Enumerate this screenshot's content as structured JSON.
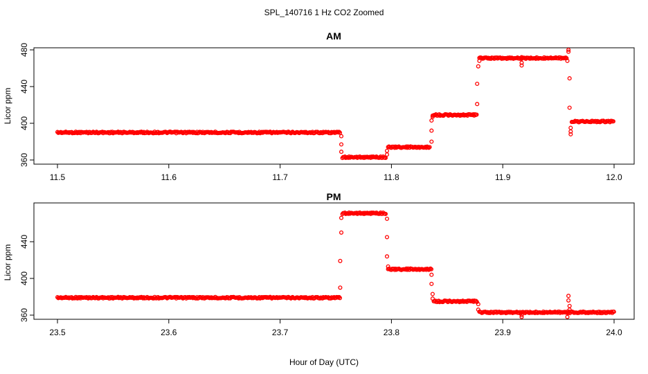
{
  "chart_data": {
    "type": "scatter",
    "title": "SPL_140716  1 Hz CO2 Zoomed",
    "xlabel": "Hour of Day (UTC)",
    "colors": {
      "points": "#ff0000",
      "axes": "#000000"
    },
    "panels": [
      {
        "title": "AM",
        "ylabel": "Licor ppm",
        "xlim": [
          11.5,
          12.0
        ],
        "ylim": [
          360,
          480
        ],
        "x_ticks": [
          11.5,
          11.6,
          11.7,
          11.8,
          11.9,
          12.0
        ],
        "x_tick_labels": [
          "11.5",
          "11.6",
          "11.7",
          "11.8",
          "11.9",
          "12.0"
        ],
        "y_ticks": [
          360,
          400,
          440,
          480
        ],
        "y_tick_labels": [
          "360",
          "400",
          "440",
          "480"
        ],
        "segments": [
          {
            "x_start": 11.5,
            "x_end": 11.754,
            "y": 390
          },
          {
            "x_start": 11.756,
            "x_end": 11.795,
            "y": 363
          },
          {
            "x_start": 11.797,
            "x_end": 11.835,
            "y": 374
          },
          {
            "x_start": 11.837,
            "x_end": 11.877,
            "y": 409
          },
          {
            "x_start": 11.879,
            "x_end": 11.958,
            "y": 471
          },
          {
            "x_start": 11.962,
            "x_end": 12.0,
            "y": 402
          }
        ],
        "outliers": [
          {
            "x": 11.755,
            "y": 386
          },
          {
            "x": 11.755,
            "y": 377
          },
          {
            "x": 11.755,
            "y": 369
          },
          {
            "x": 11.796,
            "y": 366
          },
          {
            "x": 11.796,
            "y": 370
          },
          {
            "x": 11.836,
            "y": 380
          },
          {
            "x": 11.836,
            "y": 392
          },
          {
            "x": 11.836,
            "y": 403
          },
          {
            "x": 11.837,
            "y": 407
          },
          {
            "x": 11.877,
            "y": 421
          },
          {
            "x": 11.877,
            "y": 443
          },
          {
            "x": 11.878,
            "y": 462
          },
          {
            "x": 11.879,
            "y": 468
          },
          {
            "x": 11.917,
            "y": 463
          },
          {
            "x": 11.917,
            "y": 466
          },
          {
            "x": 11.917,
            "y": 472
          },
          {
            "x": 11.958,
            "y": 468
          },
          {
            "x": 11.959,
            "y": 478
          },
          {
            "x": 11.959,
            "y": 480
          },
          {
            "x": 11.96,
            "y": 449
          },
          {
            "x": 11.96,
            "y": 417
          },
          {
            "x": 11.961,
            "y": 388
          },
          {
            "x": 11.961,
            "y": 391
          },
          {
            "x": 11.961,
            "y": 395
          }
        ]
      },
      {
        "title": "PM",
        "ylabel": "Licor ppm",
        "xlim": [
          23.5,
          24.0
        ],
        "ylim": [
          360,
          480
        ],
        "x_ticks": [
          23.5,
          23.6,
          23.7,
          23.8,
          23.9,
          24.0
        ],
        "x_tick_labels": [
          "23.5",
          "23.6",
          "23.7",
          "23.8",
          "23.9",
          "24.0"
        ],
        "y_ticks": [
          360,
          400,
          440
        ],
        "y_tick_labels": [
          "360",
          "400",
          "440"
        ],
        "segments": [
          {
            "x_start": 23.5,
            "x_end": 23.754,
            "y": 379
          },
          {
            "x_start": 23.756,
            "x_end": 23.795,
            "y": 471
          },
          {
            "x_start": 23.797,
            "x_end": 23.836,
            "y": 410
          },
          {
            "x_start": 23.838,
            "x_end": 23.877,
            "y": 375
          },
          {
            "x_start": 23.879,
            "x_end": 24.0,
            "y": 363
          }
        ],
        "outliers": [
          {
            "x": 23.754,
            "y": 390
          },
          {
            "x": 23.754,
            "y": 419
          },
          {
            "x": 23.755,
            "y": 450
          },
          {
            "x": 23.755,
            "y": 466
          },
          {
            "x": 23.796,
            "y": 465
          },
          {
            "x": 23.796,
            "y": 445
          },
          {
            "x": 23.796,
            "y": 424
          },
          {
            "x": 23.797,
            "y": 413
          },
          {
            "x": 23.836,
            "y": 404
          },
          {
            "x": 23.836,
            "y": 394
          },
          {
            "x": 23.837,
            "y": 383
          },
          {
            "x": 23.837,
            "y": 378
          },
          {
            "x": 23.878,
            "y": 372
          },
          {
            "x": 23.878,
            "y": 366
          },
          {
            "x": 23.917,
            "y": 360
          },
          {
            "x": 23.917,
            "y": 358
          },
          {
            "x": 23.958,
            "y": 358
          },
          {
            "x": 23.959,
            "y": 381
          },
          {
            "x": 23.959,
            "y": 376
          },
          {
            "x": 23.96,
            "y": 370
          },
          {
            "x": 23.96,
            "y": 366
          }
        ]
      }
    ]
  }
}
